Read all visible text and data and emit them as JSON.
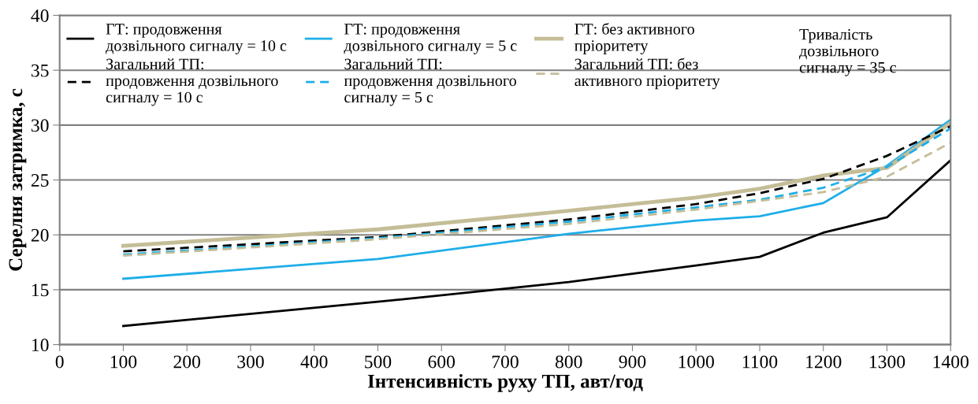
{
  "chart_data": {
    "type": "line",
    "xlabel": "Інтенсивність руху ТП, авт/год",
    "ylabel": "Серелня затримка, с",
    "x": [
      100,
      500,
      800,
      1000,
      1100,
      1200,
      1300,
      1400
    ],
    "xlim": [
      0,
      1400
    ],
    "xticks": [
      0,
      100,
      200,
      300,
      400,
      500,
      600,
      700,
      800,
      900,
      1000,
      1100,
      1200,
      1300,
      1400
    ],
    "ylim": [
      10,
      40
    ],
    "yticks": [
      10,
      15,
      20,
      25,
      30,
      35,
      40
    ],
    "grid": "y",
    "legend": "top",
    "marker": "none",
    "annotations": [
      "Тривалість\nдозвільного\nсигналу = 35 с"
    ],
    "series": [
      {
        "name": "ГТ: продовження\nдозвільного сигналу = 10 с",
        "color": "#000000",
        "line_style": "solid",
        "values": [
          11.7,
          13.9,
          15.7,
          17.2,
          18.0,
          20.2,
          21.6,
          26.8
        ]
      },
      {
        "name": "ГТ: продовження\nдозвільного сигналу = 5 с",
        "color": "#1eaee8",
        "line_style": "solid",
        "values": [
          16.0,
          17.8,
          20.1,
          21.3,
          21.7,
          22.9,
          26.3,
          30.5
        ]
      },
      {
        "name": "ГТ: без активного\nпріоритету",
        "color": "#c4bd97",
        "line_style": "solid",
        "values": [
          19.0,
          20.5,
          22.2,
          23.4,
          24.2,
          25.4,
          26.1,
          30.2
        ]
      },
      {
        "name": "Загальний ТП:\nпродовження дозвільного\nсигналу = 10 с",
        "color": "#000000",
        "line_style": "dashed",
        "values": [
          18.5,
          19.8,
          21.4,
          22.8,
          23.8,
          25.1,
          27.2,
          29.9
        ]
      },
      {
        "name": "Загальний ТП:\nпродовження дозвільного\nсигналу = 5 с",
        "color": "#1eaee8",
        "line_style": "dashed",
        "values": [
          18.2,
          19.7,
          21.2,
          22.5,
          23.2,
          24.3,
          26.2,
          29.7
        ]
      },
      {
        "name": "Загальний ТП: без\nактивного пріоритету",
        "color": "#c4bd97",
        "line_style": "dashed",
        "values": [
          18.1,
          19.6,
          21.0,
          22.3,
          23.1,
          23.9,
          25.3,
          28.4
        ]
      }
    ]
  }
}
